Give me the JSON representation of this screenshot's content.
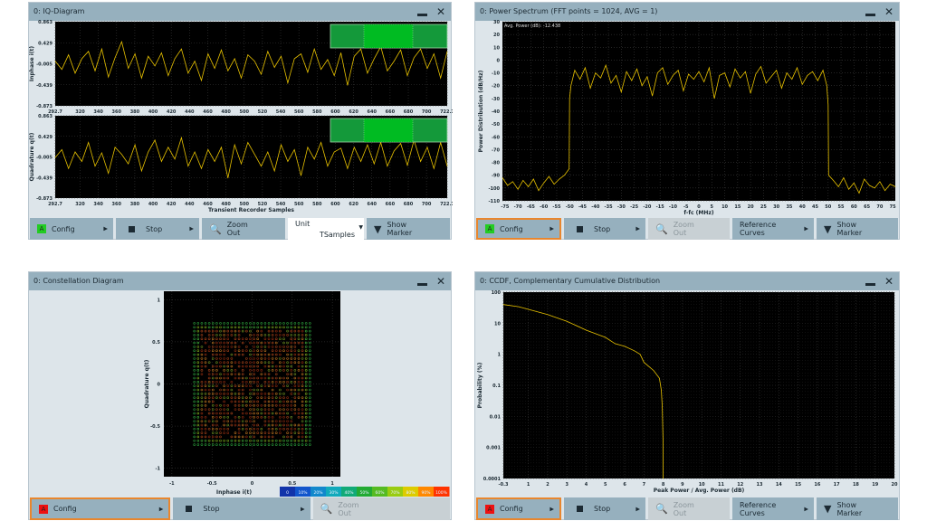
{
  "panels": {
    "iq": {
      "title": "0: IQ-Diagram",
      "buttons": {
        "config": "Config",
        "config_badge": "A",
        "stop": "Stop",
        "zoom_l1": "Zoom",
        "zoom_l2": "Out",
        "unit_label": "Unit",
        "unit_value": "TSamples",
        "marker_l1": "Show",
        "marker_l2": "Marker"
      }
    },
    "spectrum": {
      "title": "0: Power Spectrum  (FFT points = 1024, AVG = 1)",
      "annotation": "Avg. Power (dB): -12.438",
      "buttons": {
        "config": "Config",
        "config_badge": "A",
        "stop": "Stop",
        "zoom_l1": "Zoom",
        "zoom_l2": "Out",
        "ref_l1": "Reference",
        "ref_l2": "Curves",
        "marker_l1": "Show",
        "marker_l2": "Marker"
      }
    },
    "constellation": {
      "title": "0: Constellation Diagram",
      "buttons": {
        "config": "Config",
        "config_badge": "A",
        "stop": "Stop",
        "zoom_l1": "Zoom",
        "zoom_l2": "Out"
      }
    },
    "ccdf": {
      "title": "0: CCDF, Complementary Cumulative Distribution",
      "buttons": {
        "config": "Config",
        "config_badge": "A",
        "stop": "Stop",
        "zoom_l1": "Zoom",
        "zoom_l2": "Out",
        "ref_l1": "Reference",
        "ref_l2": "Curves",
        "marker_l1": "Show",
        "marker_l2": "Marker"
      }
    }
  },
  "colors": {
    "trace": "#e8c200",
    "plot_bg": "#000000",
    "accent_selected": "#e8862e",
    "badge_green": "#22cc22",
    "badge_red": "#ee1111",
    "nav_box": "#18a83a"
  },
  "chart_data": [
    {
      "type": "line",
      "id": "iq-inphase",
      "ylabel": "Inphase i(t)",
      "xlabel": "",
      "xlim": [
        292.7,
        722.7
      ],
      "ylim": [
        -0.873,
        0.863
      ],
      "xticks": [
        "292.7",
        "320",
        "340",
        "360",
        "380",
        "400",
        "420",
        "440",
        "460",
        "480",
        "500",
        "520",
        "540",
        "560",
        "580",
        "600",
        "620",
        "640",
        "660",
        "680",
        "700",
        "722.7"
      ],
      "yticks": [
        "0.863",
        "0.429",
        "-0.005",
        "-0.439",
        "-0.873"
      ],
      "values": [
        0.05,
        -0.12,
        0.18,
        -0.2,
        0.1,
        0.25,
        -0.15,
        0.3,
        -0.28,
        0.12,
        0.45,
        -0.1,
        0.2,
        -0.3,
        0.15,
        -0.05,
        0.22,
        -0.25,
        0.1,
        0.3,
        -0.2,
        0.05,
        -0.35,
        0.2,
        -0.1,
        0.28,
        -0.15,
        0.1,
        -0.3,
        0.18,
        0.05,
        -0.22,
        0.25,
        -0.08,
        0.15,
        -0.4,
        0.1,
        0.2,
        -0.18,
        0.3,
        -0.12,
        0.08,
        -0.25,
        0.22,
        -0.45,
        0.15,
        0.3,
        -0.2,
        0.1,
        0.35,
        -0.15,
        0.05,
        0.28,
        -0.25,
        0.12,
        0.3,
        -0.1,
        0.2,
        -0.3,
        0.25
      ]
    },
    {
      "type": "line",
      "id": "iq-quadrature",
      "ylabel": "Quadrature q(t)",
      "xlabel": "Transient Recorder Samples",
      "xlim": [
        292.7,
        722.7
      ],
      "ylim": [
        -0.873,
        0.863
      ],
      "xticks": [
        "292.7",
        "320",
        "340",
        "360",
        "380",
        "400",
        "420",
        "440",
        "460",
        "480",
        "500",
        "520",
        "540",
        "560",
        "580",
        "600",
        "620",
        "640",
        "660",
        "680",
        "700",
        "722.7"
      ],
      "yticks": [
        "0.863",
        "0.429",
        "-0.005",
        "-0.439",
        "-0.873"
      ],
      "values": [
        -0.02,
        0.15,
        -0.25,
        0.1,
        -0.1,
        0.3,
        -0.2,
        0.08,
        -0.35,
        0.2,
        0.05,
        -0.15,
        0.25,
        -0.3,
        0.1,
        0.35,
        -0.1,
        0.2,
        -0.05,
        0.4,
        -0.2,
        0.1,
        -0.25,
        0.15,
        -0.1,
        0.2,
        -0.45,
        0.25,
        -0.15,
        0.3,
        0.05,
        -0.2,
        0.1,
        -0.3,
        0.25,
        -0.1,
        0.15,
        -0.4,
        0.2,
        -0.05,
        0.3,
        -0.2,
        0.1,
        0.18,
        -0.25,
        0.2,
        -0.1,
        0.25,
        -0.15,
        0.3,
        -0.2,
        0.12,
        0.28,
        -0.18,
        0.35,
        -0.1,
        0.2,
        -0.25,
        0.3,
        -0.2
      ]
    },
    {
      "type": "line",
      "id": "power-spectrum",
      "ylabel": "Power Distribution (dB/Hz)",
      "xlabel": "f-fc (MHz)",
      "xlim": [
        -76,
        76
      ],
      "ylim": [
        -110,
        30
      ],
      "xticks": [
        "-75",
        "-70",
        "-65",
        "-60",
        "-55",
        "-50",
        "-45",
        "-40",
        "-35",
        "-30",
        "-25",
        "-20",
        "-15",
        "-10",
        "-5",
        "0",
        "5",
        "10",
        "15",
        "20",
        "25",
        "30",
        "35",
        "40",
        "45",
        "50",
        "55",
        "60",
        "65",
        "70",
        "75"
      ],
      "yticks": [
        "30",
        "20",
        "10",
        "0",
        "-10",
        "-20",
        "-30",
        "-40",
        "-50",
        "-60",
        "-70",
        "-80",
        "-90",
        "-100",
        "-110"
      ],
      "x": [
        -76,
        -74,
        -72,
        -70,
        -68,
        -66,
        -64,
        -62,
        -60,
        -58,
        -56,
        -54,
        -52,
        -50.2,
        -50,
        -49.5,
        -48,
        -46,
        -44,
        -42,
        -40,
        -38,
        -36,
        -34,
        -32,
        -30,
        -28,
        -26,
        -24,
        -22,
        -20,
        -18,
        -16,
        -14,
        -12,
        -10,
        -8,
        -6,
        -4,
        -2,
        0,
        2,
        4,
        6,
        8,
        10,
        12,
        14,
        16,
        18,
        20,
        22,
        24,
        26,
        28,
        30,
        32,
        34,
        36,
        38,
        40,
        42,
        44,
        46,
        48,
        49.5,
        50,
        50.2,
        52,
        54,
        56,
        58,
        60,
        62,
        64,
        66,
        68,
        70,
        72,
        74,
        76
      ],
      "y": [
        -92,
        -98,
        -95,
        -101,
        -94,
        -99,
        -93,
        -102,
        -96,
        -91,
        -97,
        -93,
        -90,
        -85,
        -30,
        -20,
        -8,
        -15,
        -6,
        -22,
        -10,
        -14,
        -4,
        -18,
        -12,
        -25,
        -9,
        -16,
        -7,
        -20,
        -13,
        -28,
        -10,
        -6,
        -19,
        -12,
        -8,
        -24,
        -11,
        -15,
        -9,
        -17,
        -6,
        -30,
        -12,
        -10,
        -21,
        -7,
        -14,
        -9,
        -26,
        -11,
        -5,
        -18,
        -13,
        -8,
        -22,
        -10,
        -15,
        -6,
        -19,
        -12,
        -9,
        -16,
        -8,
        -20,
        -35,
        -90,
        -94,
        -99,
        -92,
        -101,
        -96,
        -104,
        -93,
        -98,
        -100,
        -95,
        -102,
        -97,
        -99
      ]
    },
    {
      "type": "heatmap",
      "id": "constellation",
      "ylabel": "Quadrature q(t)",
      "xlabel": "Inphase i(t)",
      "xlim": [
        -1.1,
        1.1
      ],
      "ylim": [
        -1.1,
        1.1
      ],
      "xticks": [
        "-1",
        "-0.5",
        "0",
        "0.5",
        "1"
      ],
      "yticks": [
        "1",
        "0.5",
        "0",
        "-0.5",
        "-1"
      ],
      "grid_points_per_axis": 32,
      "grid_extent": [
        -0.72,
        0.72
      ],
      "colorbar": [
        "0",
        "10%",
        "20%",
        "30%",
        "40%",
        "50%",
        "60%",
        "70%",
        "80%",
        "90%",
        "100%"
      ]
    },
    {
      "type": "line",
      "id": "ccdf",
      "ylabel": "Probability (%)",
      "xlabel": "Peak Power / Avg. Power (dB)",
      "xlim": [
        -0.3,
        20
      ],
      "ylim": [
        0.0001,
        100
      ],
      "yscale": "log",
      "xticks": [
        "-0.3",
        "1",
        "2",
        "3",
        "4",
        "5",
        "6",
        "7",
        "8",
        "9",
        "10",
        "11",
        "12",
        "13",
        "14",
        "15",
        "16",
        "17",
        "18",
        "19",
        "20"
      ],
      "yticks": [
        "100",
        "10",
        "1",
        "0.1",
        "0.01",
        "0.001",
        "0.0001"
      ],
      "x": [
        -0.3,
        0.5,
        1,
        2,
        3,
        4,
        5,
        5.5,
        6,
        6.5,
        6.8,
        7,
        7.5,
        7.8,
        7.9,
        7.95,
        8,
        8
      ],
      "y": [
        40,
        34,
        28,
        19,
        11.5,
        6,
        3.5,
        2.2,
        1.8,
        1.3,
        1,
        0.55,
        0.3,
        0.17,
        0.07,
        0.02,
        0.001,
        0.0001
      ]
    }
  ]
}
